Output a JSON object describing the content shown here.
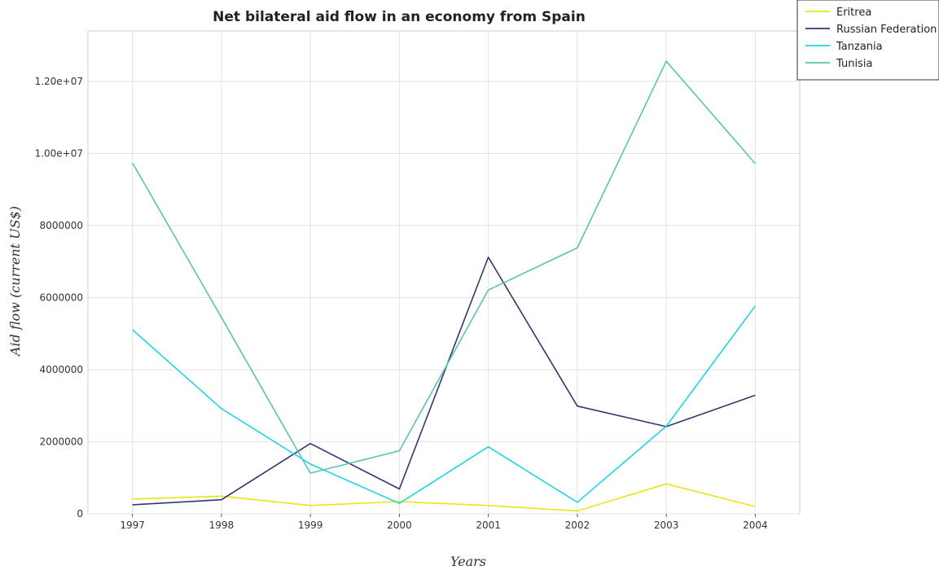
{
  "chart_data": {
    "type": "line",
    "title": "Net bilateral aid flow in an economy from Spain",
    "xlabel": "Years",
    "ylabel": "Aid flow (current US$)",
    "categories": [
      "1997",
      "1998",
      "1999",
      "2000",
      "2001",
      "2002",
      "2003",
      "2004"
    ],
    "ylim": [
      0,
      13400000
    ],
    "yticks": [
      0,
      2000000,
      4000000,
      6000000,
      8000000,
      10000000,
      12000000
    ],
    "ytick_labels": [
      "0",
      "2000000",
      "4000000",
      "6000000",
      "8000000",
      "1.00e+07",
      "1.20e+07"
    ],
    "grid": true,
    "legend_position": "top-right",
    "series": [
      {
        "name": "Eritrea",
        "color": "#e6e619",
        "values": [
          410000,
          490000,
          230000,
          340000,
          230000,
          80000,
          830000,
          200000
        ]
      },
      {
        "name": "Russian Federation",
        "color": "#35356e",
        "values": [
          250000,
          390000,
          1950000,
          690000,
          7120000,
          2990000,
          2420000,
          3290000
        ]
      },
      {
        "name": "Tanzania",
        "color": "#1fd3e6",
        "values": [
          5110000,
          2920000,
          1380000,
          290000,
          1860000,
          320000,
          2430000,
          5770000
        ]
      },
      {
        "name": "Tunisia",
        "color": "#57c4b0",
        "values": [
          9740000,
          5450000,
          1130000,
          1750000,
          6210000,
          7380000,
          12560000,
          9720000
        ]
      }
    ]
  }
}
